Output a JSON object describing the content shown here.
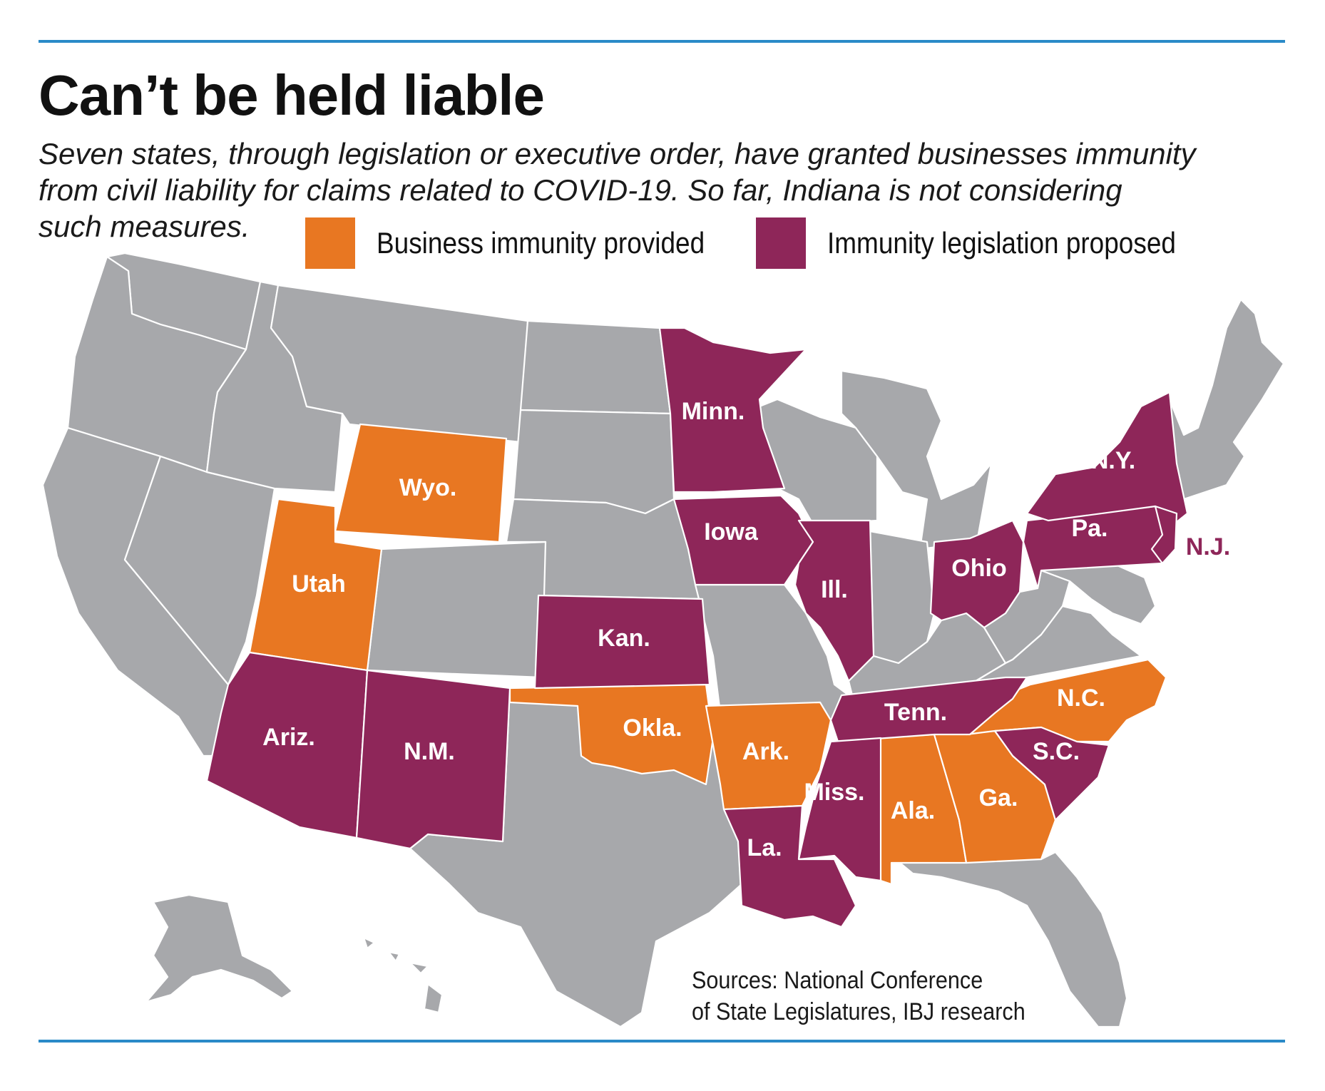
{
  "title": "Can’t be held liable",
  "subtitle": [
    "Seven states, through legislation or executive order, have granted businesses immunity",
    "from civil liability for claims related to COVID-19. So far, Indiana is not considering",
    "such measures."
  ],
  "legend": [
    {
      "label": "Business immunity provided",
      "color": "#e87722"
    },
    {
      "label": "Immunity legislation proposed",
      "color": "#8e2659"
    }
  ],
  "colors": {
    "other_states": "#a7a8ab",
    "border": "#ffffff",
    "rule": "#2a8ac8"
  },
  "states": {
    "provided": [
      "Wyo.",
      "Utah",
      "Okla.",
      "Ark.",
      "Ala.",
      "Ga.",
      "N.C."
    ],
    "proposed": [
      "Minn.",
      "Iowa",
      "Ill.",
      "Ohio",
      "Pa.",
      "N.Y.",
      "N.J.",
      "Kan.",
      "Ariz.",
      "N.M.",
      "Tenn.",
      "Miss.",
      "La.",
      "S.C."
    ]
  },
  "sources": [
    "Sources: National Conference",
    "of State Legislatures, IBJ research"
  ]
}
